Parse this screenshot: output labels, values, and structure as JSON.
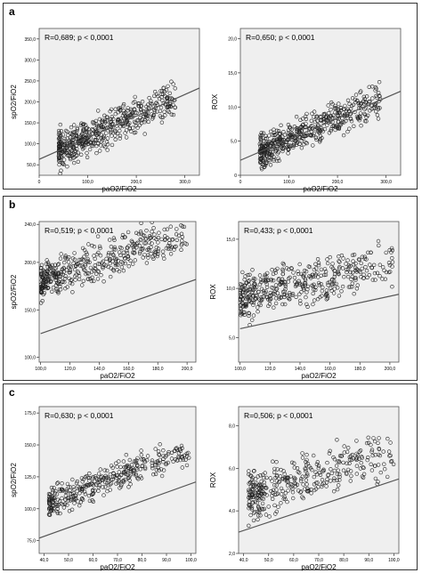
{
  "panels": [
    {
      "letter": "a"
    },
    {
      "letter": "b"
    },
    {
      "letter": "c"
    }
  ],
  "chart_data": [
    {
      "type": "scatter",
      "panel": "a",
      "annotation": "R=0,689; p < 0,0001",
      "xlabel": "paO2/FiO2",
      "ylabel": "spO2/FiO2",
      "xlim": [
        0,
        330
      ],
      "ylim": [
        25,
        375
      ],
      "xticks": [
        "0",
        "100,0",
        "200,0",
        "300,0"
      ],
      "xtick_values": [
        0,
        100,
        200,
        300
      ],
      "yticks": [
        "50,0",
        "100,0",
        "150,0",
        "200,0",
        "250,0",
        "300,0",
        "350,0"
      ],
      "ytick_values": [
        50,
        100,
        150,
        200,
        250,
        300,
        350
      ],
      "fit_line": [
        [
          0,
          63
        ],
        [
          330,
          233
        ]
      ],
      "cloud": {
        "n": 520,
        "x_min": 40,
        "x_max": 280,
        "intercept": 63,
        "slope": 0.52,
        "spread": 30,
        "seed": 11
      }
    },
    {
      "type": "scatter",
      "panel": "a",
      "annotation": "R=0,650; p < 0,0001",
      "xlabel": "paO2/FiO2",
      "ylabel": "ROX",
      "xlim": [
        0,
        330
      ],
      "ylim": [
        0,
        21.5
      ],
      "xticks": [
        "0",
        "100,0",
        "200,0",
        "300,0"
      ],
      "xtick_values": [
        0,
        100,
        200,
        300
      ],
      "yticks": [
        "0",
        "5,0",
        "10,0",
        "15,0",
        "20,0"
      ],
      "ytick_values": [
        0,
        5,
        10,
        15,
        20
      ],
      "fit_line": [
        [
          0,
          2.2
        ],
        [
          330,
          12.3
        ]
      ],
      "cloud": {
        "n": 520,
        "x_min": 40,
        "x_max": 290,
        "intercept": 2.2,
        "slope": 0.031,
        "spread": 1.7,
        "seed": 23
      }
    },
    {
      "type": "scatter",
      "panel": "b",
      "annotation": "R=0,519; p < 0,0001",
      "xlabel": "paO2/FiO2",
      "ylabel": "spO2/FiO2",
      "xlim": [
        99,
        206
      ],
      "ylim": [
        95,
        243
      ],
      "xticks": [
        "100,0",
        "120,0",
        "140,0",
        "160,0",
        "180,0",
        "200,0"
      ],
      "xtick_values": [
        100,
        120,
        140,
        160,
        180,
        200
      ],
      "yticks": [
        "100,0",
        "150,0",
        "200,0",
        "240,0"
      ],
      "ytick_values": [
        100,
        150,
        200,
        240
      ],
      "fit_line": [
        [
          100,
          125
        ],
        [
          206,
          182
        ]
      ],
      "cloud": {
        "n": 430,
        "x_min": 100,
        "x_max": 200,
        "intercept": 125,
        "slope": 0.54,
        "spread": 14,
        "seed": 37
      }
    },
    {
      "type": "scatter",
      "panel": "b",
      "annotation": "R=0,433; p < 0,0001",
      "xlabel": "paO2/FiO2",
      "ylabel": "ROX",
      "xlim": [
        99,
        206
      ],
      "ylim": [
        2.5,
        16.8
      ],
      "xticks": [
        "100,0",
        "120,0",
        "140,0",
        "160,0",
        "180,0",
        "200,0"
      ],
      "xtick_values": [
        100,
        120,
        140,
        160,
        180,
        200
      ],
      "yticks": [
        "5,0",
        "10,0",
        "15,0"
      ],
      "ytick_values": [
        5,
        10,
        15
      ],
      "fit_line": [
        [
          100,
          5.9
        ],
        [
          206,
          9.4
        ]
      ],
      "cloud": {
        "n": 430,
        "x_min": 100,
        "x_max": 202,
        "intercept": 5.9,
        "slope": 0.033,
        "spread": 1.6,
        "seed": 53
      }
    },
    {
      "type": "scatter",
      "panel": "c",
      "annotation": "R=0,630; p < 0,0001",
      "xlabel": "paO2/FiO2",
      "ylabel": "spO2/FiO2",
      "xlim": [
        38,
        102
      ],
      "ylim": [
        65,
        180
      ],
      "xticks": [
        "40,0",
        "50,0",
        "60,0",
        "70,0",
        "80,0",
        "90,0",
        "100,0"
      ],
      "xtick_values": [
        40,
        50,
        60,
        70,
        80,
        90,
        100
      ],
      "yticks": [
        "75,0",
        "100,0",
        "125,0",
        "150,0",
        "175,0"
      ],
      "ytick_values": [
        75,
        100,
        125,
        150,
        175
      ],
      "fit_line": [
        [
          38,
          77
        ],
        [
          102,
          121
        ]
      ],
      "cloud": {
        "n": 360,
        "x_min": 42,
        "x_max": 100,
        "intercept": 77,
        "slope": 0.69,
        "spread": 8,
        "seed": 71
      }
    },
    {
      "type": "scatter",
      "panel": "c",
      "annotation": "R=0,506; p < 0,0001",
      "xlabel": "paO2/FiO2",
      "ylabel": "ROX",
      "xlim": [
        38,
        102
      ],
      "ylim": [
        2.0,
        8.9
      ],
      "xticks": [
        "40,0",
        "50,0",
        "60,0",
        "70,0",
        "80,0",
        "90,0",
        "100,0"
      ],
      "xtick_values": [
        40,
        50,
        60,
        70,
        80,
        90,
        100
      ],
      "yticks": [
        "2,0",
        "4,0",
        "6,0",
        "8,0"
      ],
      "ytick_values": [
        2,
        4,
        6,
        8
      ],
      "fit_line": [
        [
          38,
          3.0
        ],
        [
          102,
          5.5
        ]
      ],
      "cloud": {
        "n": 360,
        "x_min": 42,
        "x_max": 100,
        "intercept": 3.0,
        "slope": 0.039,
        "spread": 0.8,
        "seed": 89
      }
    }
  ]
}
